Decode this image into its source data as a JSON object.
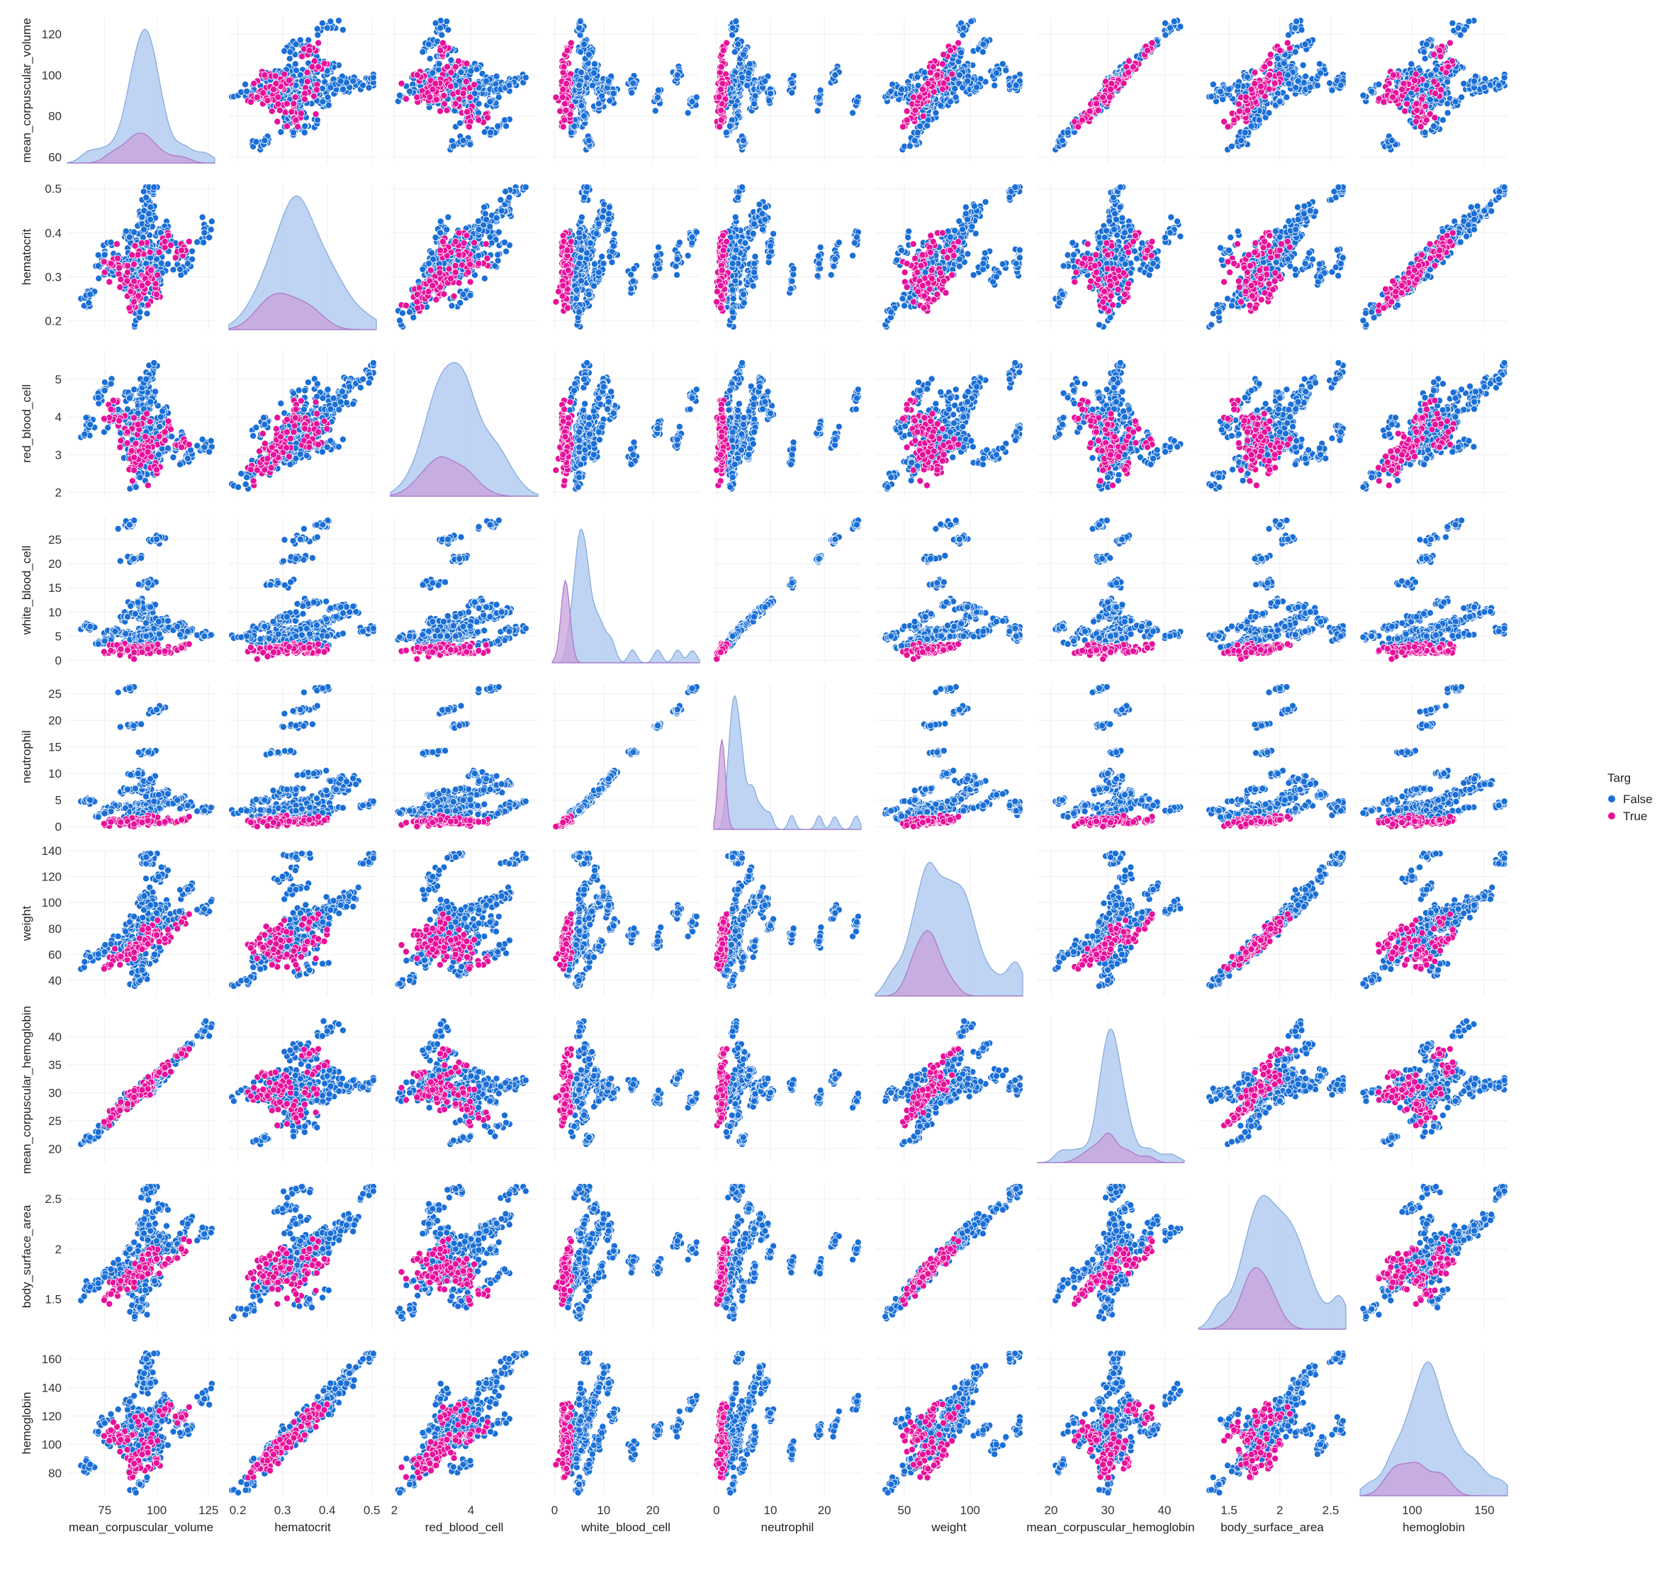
{
  "chart_data": {
    "type": "scatter",
    "kind": "pairplot",
    "hue": "Targ",
    "legend": {
      "title": "Targ",
      "placement": "right",
      "entries": [
        {
          "label": "False",
          "color": "#1a6fd6"
        },
        {
          "label": "True",
          "color": "#e6119a"
        }
      ]
    },
    "colors": {
      "False": "#1a6fd6",
      "True": "#e6119a",
      "kde_false_fill": "#a9c6ee",
      "kde_true_fill": "#c9a2dc",
      "grid": "#eeeeee"
    },
    "grid": true,
    "variables": [
      {
        "name": "mean_corpuscular_volume",
        "range": [
          57,
          128
        ],
        "ticks": [
          60,
          80,
          100,
          120
        ],
        "xticks": [
          75,
          100,
          125
        ],
        "jitter": 4
      },
      {
        "name": "hematocrit",
        "range": [
          0.18,
          0.51
        ],
        "ticks": [
          0.2,
          0.3,
          0.4,
          0.5
        ],
        "xticks": [
          0.2,
          0.3,
          0.4,
          0.5
        ],
        "jitter": 0.03
      },
      {
        "name": "red_blood_cell",
        "range": [
          1.9,
          5.75
        ],
        "ticks": [
          2,
          3,
          4,
          5
        ],
        "xticks": [
          2,
          4,
          6
        ],
        "jitter": 0.3
      },
      {
        "name": "white_blood_cell",
        "range": [
          -0.5,
          29.5
        ],
        "ticks": [
          0,
          5,
          10,
          15,
          20,
          25
        ],
        "xticks": [
          0,
          10,
          20,
          30
        ],
        "jitter": 0.8
      },
      {
        "name": "neutrophil",
        "range": [
          -0.5,
          26.8
        ],
        "ticks": [
          0,
          5,
          10,
          15,
          20,
          25
        ],
        "xticks": [
          0,
          10,
          20
        ],
        "jitter": 0.6
      },
      {
        "name": "weight",
        "range": [
          28,
          140
        ],
        "ticks": [
          40,
          60,
          80,
          100,
          120,
          140
        ],
        "xticks": [
          50,
          100,
          150
        ],
        "jitter": 6
      },
      {
        "name": "mean_corpuscular_hemoglobin",
        "range": [
          17.5,
          43.5
        ],
        "ticks": [
          20,
          25,
          30,
          35,
          40
        ],
        "xticks": [
          20,
          30,
          40
        ],
        "jitter": 1.2
      },
      {
        "name": "body_surface_area",
        "range": [
          1.2,
          2.65
        ],
        "ticks": [
          1.5,
          2.0,
          2.5
        ],
        "xticks": [
          1.5,
          2.0,
          2.5
        ],
        "jitter": 0.08
      },
      {
        "name": "hemoglobin",
        "range": [
          64,
          166
        ],
        "ticks": [
          80,
          100,
          120,
          140,
          160
        ],
        "xticks": [
          100,
          150
        ],
        "jitter": 6
      }
    ],
    "points": [
      {
        "g": "False",
        "v": [
          95,
          0.33,
          3.6,
          5,
          3,
          80,
          30.5,
          1.9,
          110
        ]
      },
      {
        "g": "False",
        "v": [
          92,
          0.3,
          3.3,
          6,
          4,
          72,
          30.0,
          1.85,
          100
        ]
      },
      {
        "g": "False",
        "v": [
          98,
          0.36,
          3.8,
          7,
          5,
          90,
          31.5,
          2.05,
          120
        ]
      },
      {
        "g": "False",
        "v": [
          88,
          0.28,
          3.2,
          4,
          2.5,
          65,
          29.0,
          1.75,
          95
        ]
      },
      {
        "g": "False",
        "v": [
          102,
          0.4,
          4.0,
          8,
          6,
          95,
          33.0,
          2.1,
          130
        ]
      },
      {
        "g": "False",
        "v": [
          85,
          0.34,
          4.0,
          5.5,
          3.5,
          70,
          28.0,
          1.8,
          112
        ]
      },
      {
        "g": "False",
        "v": [
          105,
          0.38,
          3.6,
          6.5,
          4.5,
          85,
          34.0,
          2.0,
          125
        ]
      },
      {
        "g": "False",
        "v": [
          93,
          0.42,
          4.5,
          9,
          7,
          100,
          30.5,
          2.2,
          140
        ]
      },
      {
        "g": "False",
        "v": [
          90,
          0.25,
          2.8,
          3.5,
          2.0,
          55,
          29.5,
          1.6,
          85
        ]
      },
      {
        "g": "False",
        "v": [
          97,
          0.31,
          3.2,
          5,
          3.5,
          78,
          31.0,
          1.9,
          104
        ]
      },
      {
        "g": "False",
        "v": [
          80,
          0.32,
          4.0,
          6,
          4,
          68,
          26.0,
          1.78,
          105
        ]
      },
      {
        "g": "False",
        "v": [
          110,
          0.35,
          3.2,
          7,
          5,
          88,
          36.0,
          2.05,
          118
        ]
      },
      {
        "g": "False",
        "v": [
          94,
          0.45,
          4.8,
          10,
          8,
          105,
          31.0,
          2.3,
          150
        ]
      },
      {
        "g": "False",
        "v": [
          99,
          0.27,
          2.7,
          4.5,
          3,
          60,
          32.5,
          1.68,
          90
        ]
      },
      {
        "g": "False",
        "v": [
          91,
          0.37,
          4.1,
          12,
          10,
          82,
          30.0,
          1.98,
          122
        ]
      },
      {
        "g": "False",
        "v": [
          96,
          0.29,
          3.0,
          16,
          14,
          75,
          31.5,
          1.88,
          97
        ]
      },
      {
        "g": "False",
        "v": [
          89,
          0.33,
          3.7,
          21,
          19,
          70,
          29.0,
          1.82,
          110
        ]
      },
      {
        "g": "False",
        "v": [
          100,
          0.34,
          3.4,
          25,
          22,
          92,
          32.5,
          2.08,
          113
        ]
      },
      {
        "g": "False",
        "v": [
          87,
          0.39,
          4.5,
          28,
          26,
          85,
          28.5,
          2.0,
          130
        ]
      },
      {
        "g": "False",
        "v": [
          123,
          0.4,
          3.2,
          5,
          3,
          95,
          41.0,
          2.15,
          132
        ]
      },
      {
        "g": "False",
        "v": [
          68,
          0.26,
          3.8,
          7,
          5,
          58,
          22.0,
          1.62,
          86
        ]
      },
      {
        "g": "False",
        "v": [
          95,
          0.48,
          5.0,
          6,
          4,
          130,
          31.0,
          2.55,
          160
        ]
      },
      {
        "g": "False",
        "v": [
          92,
          0.22,
          2.4,
          5,
          3,
          40,
          30.0,
          1.4,
          72
        ]
      },
      {
        "g": "False",
        "v": [
          75,
          0.35,
          4.7,
          4,
          2.5,
          62,
          24.0,
          1.72,
          115
        ]
      },
      {
        "g": "False",
        "v": [
          115,
          0.33,
          2.9,
          6,
          4,
          110,
          38.0,
          2.25,
          110
        ]
      },
      {
        "g": "False",
        "v": [
          95,
          0.33,
          3.6,
          5,
          3,
          135,
          30.5,
          2.6,
          110
        ]
      },
      {
        "g": "False",
        "v": [
          93,
          0.36,
          3.9,
          3,
          2.0,
          48,
          30.0,
          1.5,
          118
        ]
      },
      {
        "g": "False",
        "v": [
          101,
          0.3,
          3.0,
          8,
          6,
          120,
          33.0,
          2.4,
          100
        ]
      },
      {
        "g": "False",
        "v": [
          86,
          0.31,
          3.6,
          9,
          7,
          66,
          28.5,
          1.76,
          103
        ]
      },
      {
        "g": "False",
        "v": [
          97,
          0.43,
          4.4,
          11,
          9,
          98,
          31.5,
          2.18,
          143
        ]
      },
      {
        "g": "True",
        "v": [
          88,
          0.27,
          3.1,
          2,
          1.0,
          62,
          29.0,
          1.7,
          90
        ]
      },
      {
        "g": "True",
        "v": [
          94,
          0.3,
          3.2,
          1.8,
          0.8,
          70,
          30.5,
          1.82,
          100
        ]
      },
      {
        "g": "True",
        "v": [
          82,
          0.32,
          3.9,
          2.5,
          1.2,
          58,
          27.0,
          1.65,
          106
        ]
      },
      {
        "g": "True",
        "v": [
          100,
          0.26,
          2.6,
          2.2,
          1.0,
          75,
          33.0,
          1.9,
          87
        ]
      },
      {
        "g": "True",
        "v": [
          91,
          0.35,
          3.8,
          1.5,
          0.7,
          66,
          30.0,
          1.78,
          116
        ]
      },
      {
        "g": "True",
        "v": [
          96,
          0.29,
          3.0,
          2.8,
          1.4,
          80,
          31.5,
          1.95,
          96
        ]
      },
      {
        "g": "True",
        "v": [
          78,
          0.33,
          4.2,
          2.0,
          0.9,
          52,
          25.5,
          1.55,
          110
        ]
      },
      {
        "g": "True",
        "v": [
          104,
          0.38,
          3.6,
          1.9,
          0.9,
          72,
          34.5,
          1.85,
          125
        ]
      },
      {
        "g": "True",
        "v": [
          90,
          0.25,
          2.8,
          2.4,
          1.1,
          68,
          29.5,
          1.75,
          83
        ]
      },
      {
        "g": "True",
        "v": [
          86,
          0.31,
          3.6,
          2.1,
          1.0,
          60,
          28.0,
          1.68,
          103
        ]
      },
      {
        "g": "True",
        "v": [
          112,
          0.36,
          3.2,
          2.6,
          1.3,
          85,
          37.0,
          2.0,
          119
        ]
      },
      {
        "g": "True",
        "v": [
          93,
          0.28,
          3.0,
          1.7,
          0.8,
          64,
          30.5,
          1.72,
          93
        ]
      }
    ]
  }
}
